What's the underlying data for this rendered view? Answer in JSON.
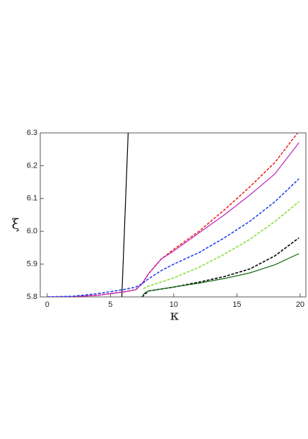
{
  "chart_data": {
    "type": "line",
    "xlabel": "κ",
    "ylabel": "ξ",
    "xlim": [
      -0.55,
      20.45
    ],
    "ylim": [
      5.8,
      6.3
    ],
    "xticks": [
      0,
      5,
      10,
      15,
      20
    ],
    "yticks": [
      5.8,
      5.9,
      {
        "value": 6.0,
        "label": "6.0"
      },
      6.1,
      6.2,
      6.3
    ],
    "series": [
      {
        "color": "#000000",
        "dash": false,
        "x": [
          5.9,
          6.4
        ],
        "values": [
          5.8,
          6.3
        ]
      },
      {
        "color": "#ee2222",
        "dash": true,
        "x": [
          0,
          2,
          4,
          6,
          7,
          7.5,
          8,
          9,
          10,
          12,
          14,
          16,
          18,
          19.8
        ],
        "values": [
          5.8,
          5.801,
          5.805,
          5.815,
          5.822,
          5.84,
          5.87,
          5.915,
          5.945,
          6.0,
          6.065,
          6.135,
          6.21,
          6.3
        ]
      },
      {
        "color": "#bb22bb",
        "dash": false,
        "x": [
          0,
          2,
          4,
          6,
          7,
          7.5,
          8,
          9,
          10,
          12,
          14,
          16,
          18,
          19.9
        ],
        "values": [
          5.8,
          5.801,
          5.805,
          5.815,
          5.822,
          5.84,
          5.87,
          5.915,
          5.94,
          5.995,
          6.05,
          6.11,
          6.175,
          6.27
        ]
      },
      {
        "color": "#2244ee",
        "dash": true,
        "x": [
          0,
          2,
          4,
          6,
          7,
          7.5,
          8,
          9,
          10,
          12,
          14,
          16,
          18,
          19.9
        ],
        "values": [
          5.8,
          5.802,
          5.81,
          5.822,
          5.83,
          5.84,
          5.855,
          5.88,
          5.9,
          5.935,
          5.98,
          6.03,
          6.09,
          6.16
        ]
      },
      {
        "color": "#88dd33",
        "dash": true,
        "x": [
          7.6,
          8,
          9,
          10,
          12,
          14,
          16,
          18,
          19.9
        ],
        "values": [
          5.825,
          5.833,
          5.845,
          5.858,
          5.89,
          5.93,
          5.975,
          6.03,
          6.09
        ]
      },
      {
        "color": "#000000",
        "dash": true,
        "x": [
          7.5,
          8,
          10,
          12,
          14,
          16,
          18,
          19.9
        ],
        "values": [
          5.8,
          5.818,
          5.83,
          5.845,
          5.862,
          5.885,
          5.925,
          5.98
        ]
      },
      {
        "color": "#116611",
        "dash": false,
        "x": [
          7.5,
          7.7,
          8,
          10,
          12,
          14,
          16,
          18,
          19.9
        ],
        "values": [
          5.8,
          5.812,
          5.818,
          5.83,
          5.842,
          5.856,
          5.873,
          5.898,
          5.932
        ]
      }
    ]
  }
}
